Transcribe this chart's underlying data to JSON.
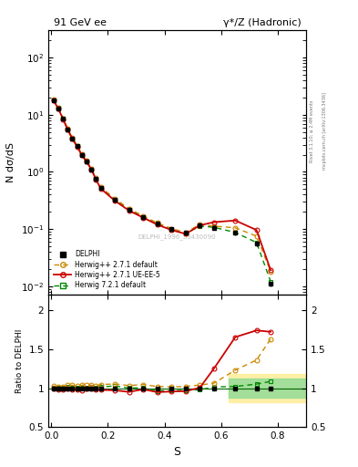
{
  "title_left": "91 GeV ee",
  "title_right": "γ*/Z (Hadronic)",
  "ylabel_main": "N dσ/dS",
  "ylabel_ratio": "Ratio to DELPHI",
  "xlabel": "S",
  "watermark": "DELPHI_1996_S3430090",
  "right_label": "Rivet 3.1.10; ≥ 2.4M events",
  "right_label2": "mcplots.cern.ch [arXiv:1306.3436]",
  "delphi_x": [
    0.008,
    0.025,
    0.042,
    0.058,
    0.075,
    0.092,
    0.108,
    0.125,
    0.142,
    0.158,
    0.175,
    0.225,
    0.275,
    0.325,
    0.375,
    0.425,
    0.475,
    0.525,
    0.575,
    0.65,
    0.725,
    0.775
  ],
  "delphi_y": [
    18.0,
    13.0,
    8.5,
    5.5,
    3.8,
    2.8,
    2.0,
    1.5,
    1.1,
    0.75,
    0.52,
    0.32,
    0.22,
    0.16,
    0.125,
    0.1,
    0.085,
    0.115,
    0.105,
    0.085,
    0.055,
    0.011
  ],
  "delphi_yerr": [
    1.0,
    0.8,
    0.5,
    0.3,
    0.2,
    0.15,
    0.12,
    0.1,
    0.08,
    0.06,
    0.04,
    0.025,
    0.018,
    0.014,
    0.01,
    0.008,
    0.007,
    0.009,
    0.008,
    0.007,
    0.005,
    0.001
  ],
  "hw271_x": [
    0.008,
    0.025,
    0.042,
    0.058,
    0.075,
    0.092,
    0.108,
    0.125,
    0.142,
    0.158,
    0.175,
    0.225,
    0.275,
    0.325,
    0.375,
    0.425,
    0.475,
    0.525,
    0.575,
    0.65,
    0.725,
    0.775
  ],
  "hw271_y": [
    18.5,
    13.2,
    8.7,
    5.7,
    3.95,
    2.88,
    2.08,
    1.58,
    1.14,
    0.775,
    0.545,
    0.338,
    0.228,
    0.168,
    0.128,
    0.102,
    0.087,
    0.12,
    0.112,
    0.105,
    0.075,
    0.018
  ],
  "hw271ue_x": [
    0.008,
    0.025,
    0.042,
    0.058,
    0.075,
    0.092,
    0.108,
    0.125,
    0.142,
    0.158,
    0.175,
    0.225,
    0.275,
    0.325,
    0.375,
    0.425,
    0.475,
    0.525,
    0.575,
    0.65,
    0.725,
    0.775
  ],
  "hw271ue_y": [
    18.0,
    12.8,
    8.4,
    5.5,
    3.75,
    2.75,
    1.96,
    1.5,
    1.1,
    0.74,
    0.51,
    0.312,
    0.21,
    0.158,
    0.119,
    0.096,
    0.082,
    0.116,
    0.132,
    0.141,
    0.096,
    0.019
  ],
  "hw721_x": [
    0.008,
    0.025,
    0.042,
    0.058,
    0.075,
    0.092,
    0.108,
    0.125,
    0.142,
    0.158,
    0.175,
    0.225,
    0.275,
    0.325,
    0.375,
    0.425,
    0.475,
    0.525,
    0.575,
    0.65,
    0.725,
    0.775
  ],
  "hw721_y": [
    18.2,
    13.1,
    8.6,
    5.6,
    3.85,
    2.82,
    2.02,
    1.52,
    1.12,
    0.76,
    0.53,
    0.33,
    0.221,
    0.161,
    0.121,
    0.097,
    0.083,
    0.113,
    0.107,
    0.087,
    0.058,
    0.012
  ],
  "ratio_hw271_y": [
    1.03,
    1.02,
    1.02,
    1.04,
    1.04,
    1.03,
    1.04,
    1.05,
    1.04,
    1.03,
    1.05,
    1.056,
    1.036,
    1.05,
    1.024,
    1.02,
    1.024,
    1.043,
    1.067,
    1.235,
    1.364,
    1.636
  ],
  "ratio_hw271ue_y": [
    1.0,
    0.985,
    0.988,
    1.0,
    0.987,
    0.982,
    0.98,
    1.0,
    1.0,
    0.987,
    0.981,
    0.975,
    0.955,
    0.988,
    0.952,
    0.96,
    0.965,
    1.009,
    1.257,
    1.659,
    1.745,
    1.727
  ],
  "ratio_hw721_y": [
    1.01,
    1.008,
    1.012,
    1.018,
    1.013,
    1.007,
    1.01,
    1.013,
    1.018,
    1.013,
    1.019,
    1.031,
    1.005,
    1.006,
    0.968,
    0.97,
    0.976,
    0.983,
    1.019,
    1.024,
    1.055,
    1.09
  ],
  "color_delphi": "#000000",
  "color_hw271": "#cc8800",
  "color_hw271ue": "#cc0000",
  "color_hw721": "#008800",
  "color_hw271_fill": "#ffee99",
  "color_hw721_fill": "#99dd99",
  "ylim_main": [
    0.007,
    300
  ],
  "ylim_ratio": [
    0.5,
    2.2
  ],
  "xlim": [
    -0.01,
    0.9
  ]
}
